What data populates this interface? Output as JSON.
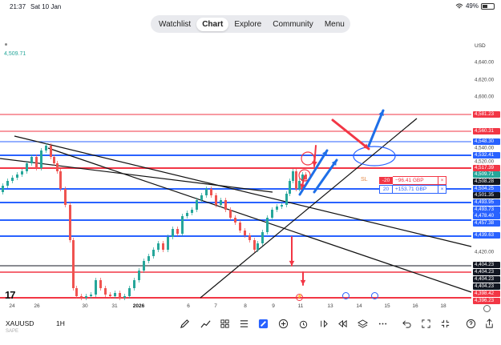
{
  "status": {
    "time": "21:37",
    "date": "Sat 10 Jan",
    "battery": "49%",
    "battery_level": 0.49
  },
  "nav": {
    "tabs": [
      {
        "label": "Watchlist"
      },
      {
        "label": "Chart",
        "active": true
      },
      {
        "label": "Explore"
      },
      {
        "label": "Community"
      },
      {
        "label": "Menu"
      }
    ]
  },
  "chart": {
    "currency": "USD",
    "top_price": "4,509.71",
    "price_ticks": [
      "4,640.00",
      "4,620.00",
      "4,600.00",
      "4,540.00",
      "4,520.00",
      "4,420.00"
    ],
    "price_badges": [
      {
        "label": "4,581.23",
        "color": "#f23645"
      },
      {
        "label": "4,560.31",
        "color": "#f23645"
      },
      {
        "label": "4,548.30",
        "color": "#2962ff"
      },
      {
        "label": "4,532.41",
        "color": "#2962ff"
      },
      {
        "label": "4,517.39",
        "color": "#f23645"
      },
      {
        "label": "4,509.71",
        "color": "#26a69a"
      },
      {
        "label": "4,508.28",
        "color": "#131722"
      },
      {
        "label": "4,504.25",
        "color": "#2962ff"
      },
      {
        "label": "4,501.35",
        "color": "#131722"
      },
      {
        "label": "4,493.95",
        "color": "#2962ff"
      },
      {
        "label": "4,493.73",
        "color": "#2962ff"
      },
      {
        "label": "4,478.40",
        "color": "#2962ff"
      },
      {
        "label": "4,457.38",
        "color": "#2962ff"
      },
      {
        "label": "4,439.63",
        "color": "#2962ff"
      },
      {
        "label": "4,404.23",
        "color": "#131722"
      },
      {
        "label": "4,404.23",
        "color": "#131722"
      },
      {
        "label": "4,404.23",
        "color": "#131722"
      },
      {
        "label": "4,404.23",
        "color": "#131722"
      },
      {
        "label": "4,398.42",
        "color": "#f23645"
      },
      {
        "label": "4,396.23",
        "color": "#f23645"
      }
    ],
    "time_ticks": [
      {
        "label": "24"
      },
      {
        "label": "26"
      },
      {
        "label": "30"
      },
      {
        "label": "31"
      },
      {
        "label": "2026",
        "bold": true
      },
      {
        "label": "6"
      },
      {
        "label": "7"
      },
      {
        "label": "8"
      },
      {
        "label": "9"
      },
      {
        "label": "11"
      },
      {
        "label": "13"
      },
      {
        "label": "14"
      },
      {
        "label": "15"
      },
      {
        "label": "16"
      },
      {
        "label": "18"
      }
    ],
    "orders": {
      "sl_label": "SL",
      "sl": {
        "qty": "-20",
        "value": "−96.41 GBP",
        "close": "×"
      },
      "tp": {
        "qty": "20",
        "value": "+153.71 GBP",
        "close": "×"
      }
    },
    "news_glyph": "⚡",
    "colors": {
      "up": "#26a69a",
      "down": "#ef5350",
      "red_level": "#f23645",
      "blue_level": "#2962ff",
      "arrow_blue": "#1e6fe8",
      "arrow_red": "#f23645"
    }
  },
  "toolbar": {
    "symbol": "XAUUSD",
    "interval": "1H",
    "subtext": "SAPE",
    "icons": [
      "pencil-icon",
      "indicators-icon",
      "templates-icon",
      "layouts-icon",
      "brand-icon",
      "add-icon",
      "alert-icon",
      "replay-icon",
      "rewind-icon",
      "layers-icon",
      "more-icon",
      "undo-icon",
      "fullscreen-icon",
      "fullscreen-exit-icon",
      "help-icon",
      "share-icon"
    ]
  }
}
